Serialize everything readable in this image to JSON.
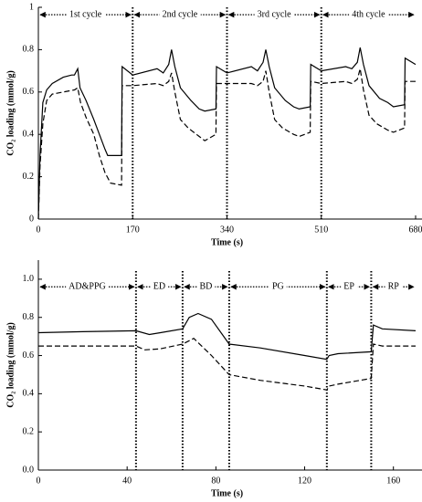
{
  "chart_data": [
    {
      "type": "line",
      "xlabel": "Time (s)",
      "ylabel": "CO₂ loading (mmol/g)",
      "xlim": [
        0,
        680
      ],
      "ylim": [
        0,
        1
      ],
      "xticks": [
        0,
        170,
        340,
        510,
        680
      ],
      "yticks": [
        0,
        0.2,
        0.4,
        0.6,
        0.8,
        1
      ],
      "vlines": [
        170,
        340,
        510
      ],
      "phases": [
        "1st cycle",
        "2nd cycle",
        "3rd cycle",
        "4th cycle"
      ],
      "series": [
        {
          "color": "#000000",
          "style": "solid",
          "x": [
            0,
            3,
            8,
            15,
            25,
            45,
            60,
            65,
            71,
            75,
            86,
            100,
            110,
            120,
            125,
            150,
            151,
            170,
            214,
            225,
            235,
            240,
            246,
            256,
            275,
            290,
            300,
            320,
            321,
            340,
            384,
            395,
            405,
            410,
            416,
            426,
            445,
            460,
            470,
            490,
            491,
            510,
            554,
            565,
            575,
            580,
            586,
            596,
            615,
            630,
            640,
            660,
            661,
            680
          ],
          "values": [
            0,
            0.3,
            0.55,
            0.61,
            0.64,
            0.67,
            0.68,
            0.68,
            0.71,
            0.62,
            0.56,
            0.47,
            0.4,
            0.33,
            0.3,
            0.3,
            0.72,
            0.68,
            0.71,
            0.69,
            0.73,
            0.8,
            0.72,
            0.62,
            0.56,
            0.52,
            0.51,
            0.52,
            0.72,
            0.69,
            0.72,
            0.7,
            0.74,
            0.8,
            0.72,
            0.62,
            0.56,
            0.53,
            0.52,
            0.53,
            0.73,
            0.7,
            0.72,
            0.71,
            0.74,
            0.81,
            0.73,
            0.63,
            0.57,
            0.55,
            0.53,
            0.54,
            0.76,
            0.73
          ]
        },
        {
          "color": "#000000",
          "style": "dashed",
          "x": [
            0,
            3,
            8,
            15,
            25,
            45,
            65,
            71,
            76,
            86,
            100,
            110,
            120,
            130,
            150,
            151,
            170,
            214,
            225,
            235,
            240,
            246,
            256,
            270,
            290,
            300,
            320,
            321,
            340,
            384,
            395,
            405,
            410,
            416,
            426,
            440,
            460,
            470,
            490,
            491,
            510,
            554,
            565,
            575,
            580,
            586,
            596,
            610,
            630,
            640,
            660,
            661,
            680
          ],
          "values": [
            0,
            0.25,
            0.45,
            0.56,
            0.59,
            0.6,
            0.61,
            0.62,
            0.55,
            0.48,
            0.4,
            0.3,
            0.22,
            0.17,
            0.16,
            0.63,
            0.63,
            0.64,
            0.63,
            0.65,
            0.69,
            0.6,
            0.47,
            0.43,
            0.39,
            0.37,
            0.4,
            0.64,
            0.64,
            0.64,
            0.63,
            0.65,
            0.7,
            0.6,
            0.47,
            0.43,
            0.4,
            0.39,
            0.41,
            0.65,
            0.64,
            0.65,
            0.64,
            0.66,
            0.71,
            0.61,
            0.49,
            0.45,
            0.42,
            0.41,
            0.43,
            0.65,
            0.65
          ]
        }
      ]
    },
    {
      "type": "line",
      "xlabel": "Time (s)",
      "ylabel": "CO₂ loading (mmol/g)",
      "xlim": [
        0,
        170
      ],
      "ylim": [
        0,
        1.1
      ],
      "xticks": [
        0,
        40,
        80,
        120,
        160
      ],
      "yticks": [
        {
          "value": 0,
          "label": "0.0"
        },
        0.2,
        0.4,
        0.6,
        0.8,
        {
          "value": 1,
          "label": "1.0"
        }
      ],
      "vlines": [
        44,
        65,
        86,
        130,
        150
      ],
      "phases": [
        "AD&PPG",
        "ED",
        "BD",
        "PG",
        "EP",
        "RP"
      ],
      "series": [
        {
          "color": "#000000",
          "style": "solid",
          "x": [
            0,
            20,
            44,
            50,
            55,
            65,
            68,
            72,
            78,
            86,
            100,
            120,
            130,
            131,
            135,
            150,
            151,
            155,
            170
          ],
          "values": [
            0.72,
            0.725,
            0.73,
            0.71,
            0.72,
            0.74,
            0.8,
            0.82,
            0.79,
            0.66,
            0.64,
            0.6,
            0.58,
            0.6,
            0.61,
            0.62,
            0.76,
            0.74,
            0.73
          ]
        },
        {
          "color": "#000000",
          "style": "dashed",
          "x": [
            0,
            44,
            48,
            55,
            65,
            70,
            78,
            86,
            100,
            120,
            130,
            131,
            135,
            150,
            151,
            155,
            170
          ],
          "values": [
            0.65,
            0.65,
            0.63,
            0.635,
            0.66,
            0.69,
            0.6,
            0.5,
            0.47,
            0.44,
            0.42,
            0.44,
            0.45,
            0.48,
            0.66,
            0.65,
            0.65
          ]
        }
      ]
    }
  ]
}
